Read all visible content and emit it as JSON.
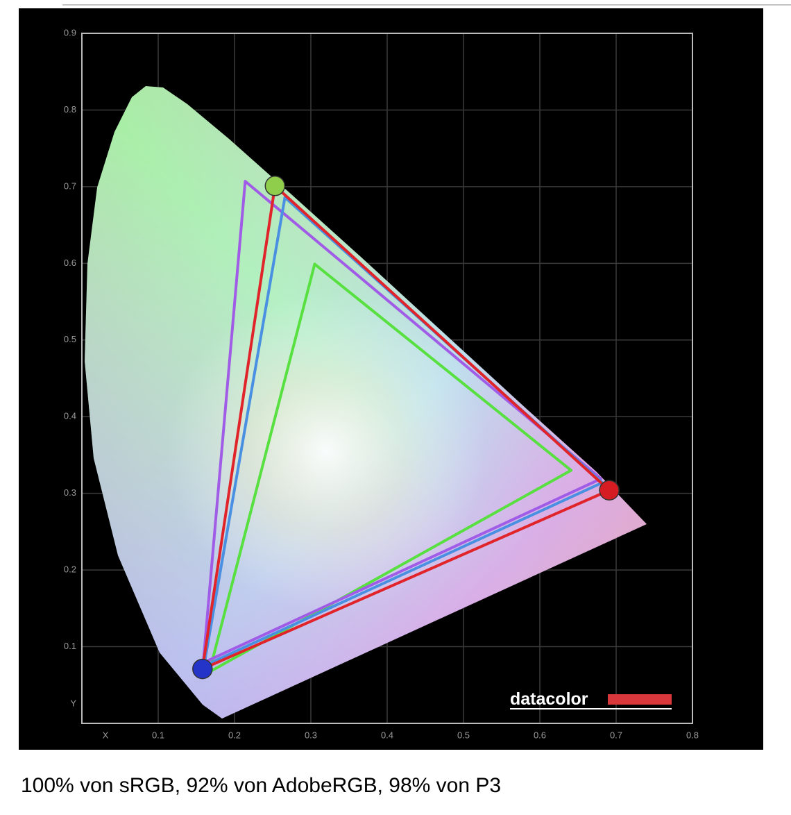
{
  "chart_data": {
    "type": "line",
    "xlim": [
      0,
      0.8
    ],
    "ylim": [
      0,
      0.9
    ],
    "xticks": [
      {
        "value": 0,
        "label": "X"
      },
      0.1,
      0.2,
      0.3,
      0.4,
      0.5,
      0.6,
      0.7,
      0.8
    ],
    "yticks": [
      {
        "value": 0,
        "label": "Y"
      },
      0.1,
      0.2,
      0.3,
      0.4,
      0.5,
      0.6,
      0.7,
      0.8,
      0.9
    ],
    "grid": true,
    "series": [
      {
        "color": "#e0242a",
        "x": [
          0.253,
          0.691,
          0.158
        ],
        "y": [
          0.701,
          0.304,
          0.071
        ],
        "markers": [
          "#8fce4a",
          "#d41c22",
          "#2434c8"
        ]
      },
      {
        "color": "#4a90e2",
        "x": [
          0.266,
          0.682,
          0.16
        ],
        "y": [
          0.686,
          0.314,
          0.075
        ]
      },
      {
        "color": "#a05ce6",
        "x": [
          0.214,
          0.68,
          0.159
        ],
        "y": [
          0.707,
          0.319,
          0.079
        ]
      },
      {
        "color": "#58e040",
        "x": [
          0.305,
          0.641,
          0.167
        ],
        "y": [
          0.599,
          0.33,
          0.067
        ]
      }
    ],
    "watermark": "datacolor",
    "caption": "100% von sRGB, 92% von AdobeRGB, 98% von P3"
  }
}
